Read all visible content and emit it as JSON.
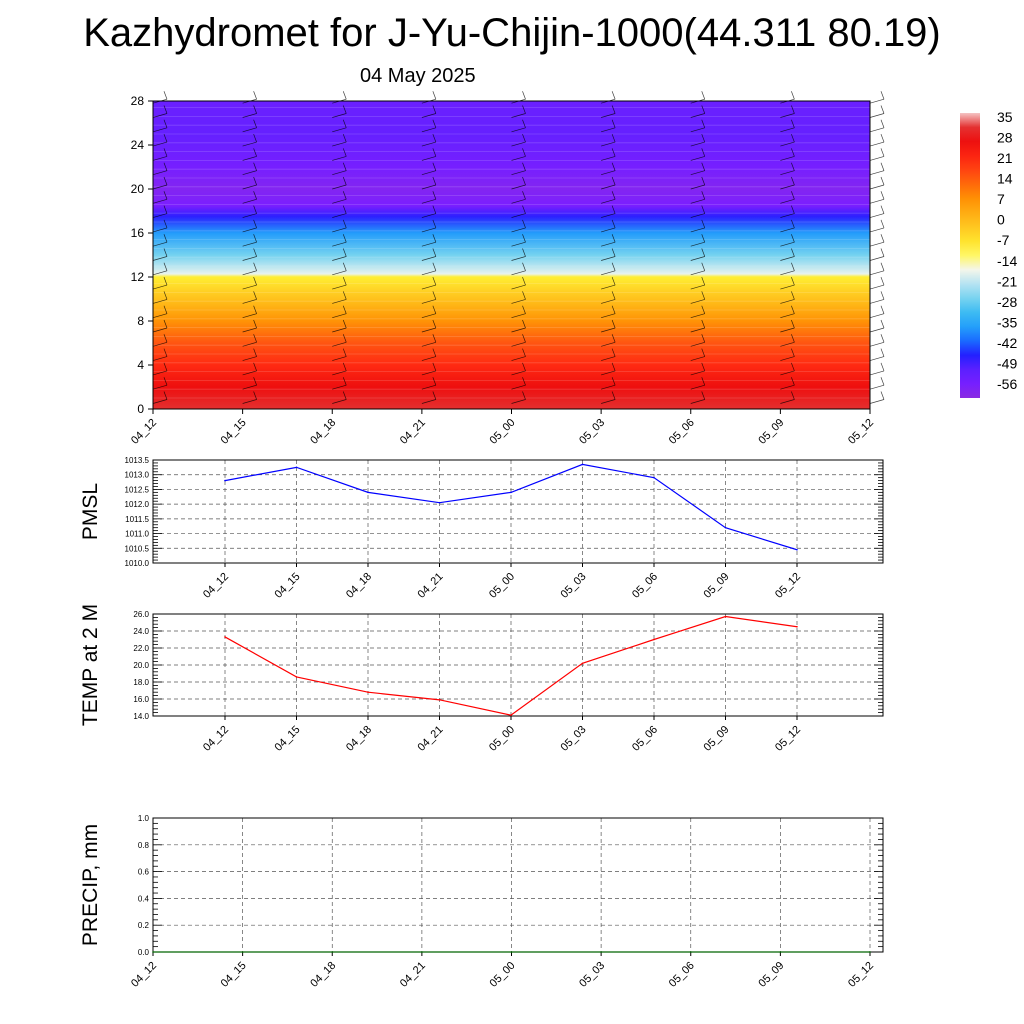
{
  "header": {
    "title": "Kazhydromet for J-Yu-Chijin-1000(44.311 80.19)",
    "date": "04 May 2025"
  },
  "chart_data": [
    {
      "type": "heatmap",
      "id": "profile",
      "x_ticks": [
        "04_12",
        "04_15",
        "04_18",
        "04_21",
        "05_00",
        "05_03",
        "05_06",
        "05_09",
        "05_12"
      ],
      "y_ticks": [
        "0",
        "4",
        "8",
        "12",
        "16",
        "20",
        "24",
        "28"
      ],
      "ylim": [
        0,
        28
      ],
      "colorbar_labels": [
        "35",
        "28",
        "21",
        "14",
        "7",
        "0",
        "-7",
        "-14",
        "-21",
        "-28",
        "-35",
        "-42",
        "-49",
        "-56"
      ],
      "colorbar_range": [
        -60,
        38
      ],
      "temperature_by_height": [
        {
          "y": 0,
          "t": 33
        },
        {
          "y": 2,
          "t": 28
        },
        {
          "y": 4,
          "t": 22
        },
        {
          "y": 6,
          "t": 16
        },
        {
          "y": 8,
          "t": 8
        },
        {
          "y": 10,
          "t": 0
        },
        {
          "y": 12,
          "t": -8
        },
        {
          "y": 12.3,
          "t": -17
        },
        {
          "y": 14,
          "t": -26
        },
        {
          "y": 16,
          "t": -36
        },
        {
          "y": 17.5,
          "t": -46
        },
        {
          "y": 18.5,
          "t": -56
        },
        {
          "y": 20,
          "t": -58
        },
        {
          "y": 22,
          "t": -55
        },
        {
          "y": 25,
          "t": -52
        },
        {
          "y": 28,
          "t": -53
        }
      ],
      "grid": false
    },
    {
      "type": "line",
      "id": "pmsl",
      "ylabel": "PMSL",
      "x": [
        "04_12",
        "04_15",
        "04_18",
        "04_21",
        "05_00",
        "05_03",
        "05_06",
        "05_09",
        "05_12"
      ],
      "y_ticks": [
        "1010.0",
        "1010.5",
        "1011.0",
        "1011.5",
        "1012.0",
        "1012.5",
        "1013.0",
        "1013.5"
      ],
      "ylim": [
        1010.0,
        1013.5
      ],
      "series": [
        {
          "values": [
            1012.8,
            1013.25,
            1012.4,
            1012.05,
            1012.4,
            1013.35,
            1012.9,
            1011.2,
            1010.45
          ],
          "color": "#0000ff"
        }
      ],
      "grid": true
    },
    {
      "type": "line",
      "id": "temp2m",
      "ylabel": "TEMP at 2 M",
      "x": [
        "04_12",
        "04_15",
        "04_18",
        "04_21",
        "05_00",
        "05_03",
        "05_06",
        "05_09",
        "05_12"
      ],
      "y_ticks": [
        "14.0",
        "16.0",
        "18.0",
        "20.0",
        "22.0",
        "24.0",
        "26.0"
      ],
      "ylim": [
        14.0,
        26.0
      ],
      "series": [
        {
          "values": [
            23.3,
            18.6,
            16.8,
            15.9,
            14.1,
            20.2,
            23.0,
            25.7,
            24.5
          ],
          "color": "#ff0000"
        }
      ],
      "grid": true
    },
    {
      "type": "line",
      "id": "precip",
      "ylabel": "PRECIP, mm",
      "x": [
        "04_12",
        "04_15",
        "04_18",
        "04_21",
        "05_00",
        "05_03",
        "05_06",
        "05_09",
        "05_12"
      ],
      "y_ticks": [
        "0.0",
        "0.2",
        "0.4",
        "0.6",
        "0.8",
        "1.0"
      ],
      "ylim": [
        0.0,
        1.0
      ],
      "series": [
        {
          "values": [
            0,
            0,
            0,
            0,
            0,
            0,
            0,
            0,
            0
          ],
          "color": "#006400"
        }
      ],
      "grid": true
    }
  ]
}
